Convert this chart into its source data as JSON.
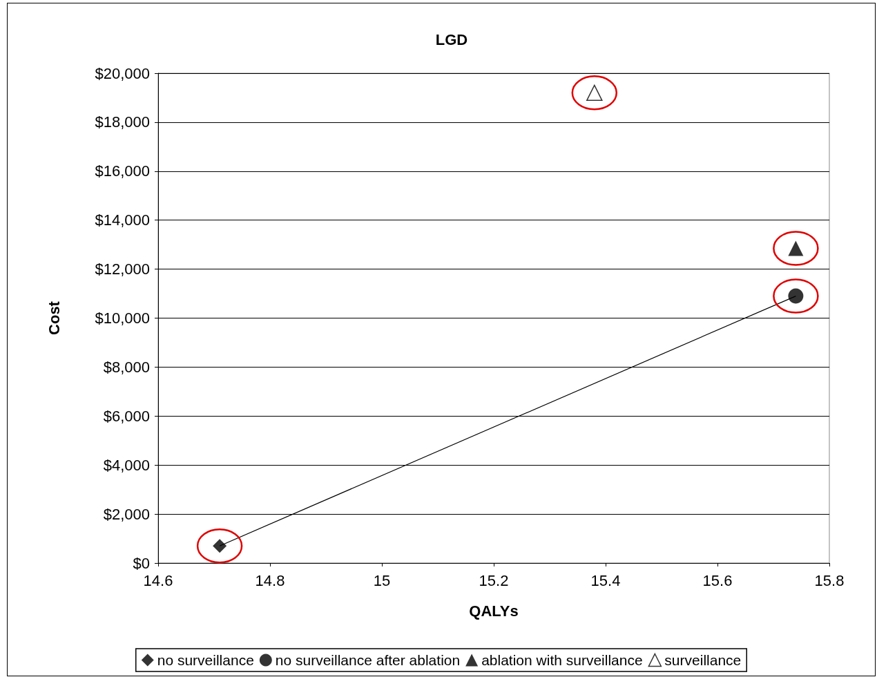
{
  "chart_data": {
    "type": "scatter",
    "title": "LGD",
    "xlabel": "QALYs",
    "ylabel": "Cost",
    "series": [
      {
        "name": "no surveillance",
        "color": "#000000",
        "marker": "diamond",
        "x": [
          14.71
        ],
        "values": [
          700
        ]
      },
      {
        "name": "no surveillance after ablation",
        "color": "#000000",
        "marker": "circle",
        "x": [
          15.74
        ],
        "values": [
          10900
        ]
      },
      {
        "name": "ablation with surveillance",
        "color": "#000000",
        "marker": "triangle",
        "x": [
          15.74
        ],
        "values": [
          12850
        ]
      },
      {
        "name": "surveillance",
        "color": "#000000",
        "marker": "triangle-open",
        "x": [
          15.38
        ],
        "values": [
          19200
        ]
      },
      {
        "type": "line",
        "color": "#000000",
        "marker": "none",
        "x": [
          14.71,
          15.74
        ],
        "values": [
          700,
          10900
        ]
      }
    ],
    "xlim": [
      14.6,
      15.8
    ],
    "xticks": [
      14.6,
      14.8,
      15,
      15.2,
      15.4,
      15.6,
      15.8
    ],
    "ylim": [
      0,
      20000
    ],
    "yticks": [
      {
        "value": 0,
        "label": "$0"
      },
      {
        "value": 2000,
        "label": "$2,000"
      },
      {
        "value": 4000,
        "label": "$4,000"
      },
      {
        "value": 6000,
        "label": "$6,000"
      },
      {
        "value": 8000,
        "label": "$8,000"
      },
      {
        "value": 10000,
        "label": "$10,000"
      },
      {
        "value": 12000,
        "label": "$12,000"
      },
      {
        "value": 14000,
        "label": "$14,000"
      },
      {
        "value": 16000,
        "label": "$16,000"
      },
      {
        "value": 18000,
        "label": "$18,000"
      },
      {
        "value": 20000,
        "label": "$20,000"
      }
    ],
    "grid": "y",
    "legend": "bottom"
  }
}
